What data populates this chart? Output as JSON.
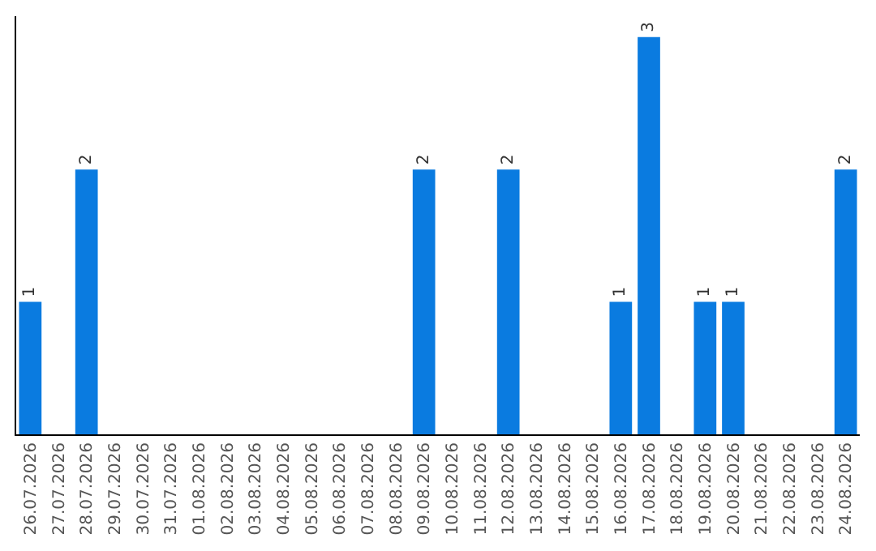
{
  "chart_data": {
    "type": "bar",
    "categories": [
      "26.07.2026",
      "27.07.2026",
      "28.07.2026",
      "29.07.2026",
      "30.07.2026",
      "31.07.2026",
      "01.08.2026",
      "02.08.2026",
      "03.08.2026",
      "04.08.2026",
      "05.08.2026",
      "06.08.2026",
      "07.08.2026",
      "08.08.2026",
      "09.08.2026",
      "10.08.2026",
      "11.08.2026",
      "12.08.2026",
      "13.08.2026",
      "14.08.2026",
      "15.08.2026",
      "16.08.2026",
      "17.08.2026",
      "18.08.2026",
      "19.08.2026",
      "20.08.2026",
      "21.08.2026",
      "22.08.2026",
      "23.08.2026",
      "24.08.2026"
    ],
    "values": [
      1,
      0,
      2,
      0,
      0,
      0,
      0,
      0,
      0,
      0,
      0,
      0,
      0,
      0,
      2,
      0,
      0,
      2,
      0,
      0,
      0,
      1,
      3,
      0,
      1,
      1,
      0,
      0,
      0,
      2
    ],
    "value_labels": [
      "1",
      null,
      "2",
      null,
      null,
      null,
      null,
      null,
      null,
      null,
      null,
      null,
      null,
      null,
      "2",
      null,
      null,
      "2",
      null,
      null,
      null,
      "1",
      "3",
      null,
      "1",
      "1",
      null,
      null,
      null,
      "2"
    ],
    "color": "#0a7be0",
    "grid": false,
    "legend": false,
    "tick_labels": "x"
  }
}
